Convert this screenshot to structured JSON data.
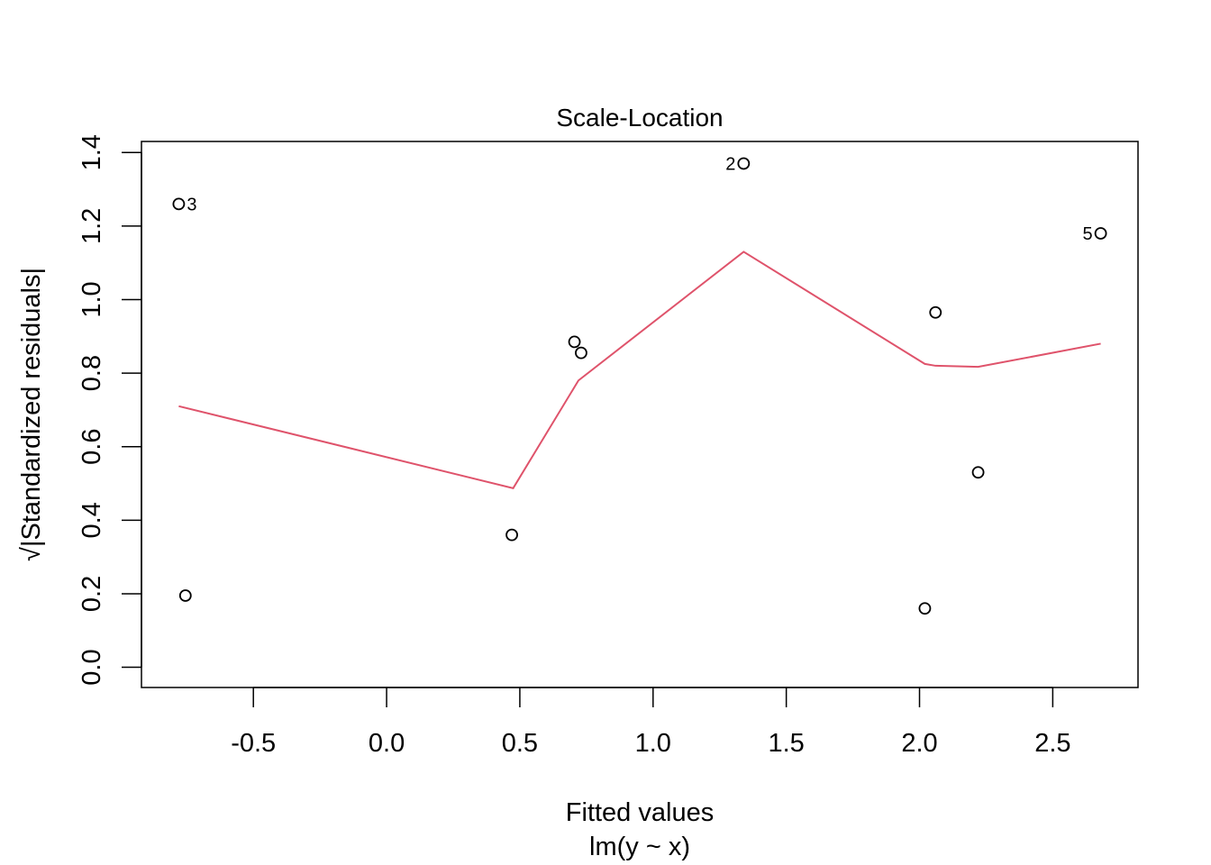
{
  "chart_data": {
    "type": "scatter",
    "title": "Scale-Location",
    "xlabel": "Fitted values",
    "xsublabel": "lm(y ~ x)",
    "ylabel_radical": "√",
    "ylabel": "|Standardized residuals|",
    "xlim": [
      -0.92,
      2.82
    ],
    "ylim": [
      -0.055,
      1.43
    ],
    "xticks": [
      -0.5,
      0.0,
      0.5,
      1.0,
      1.5,
      2.0,
      2.5
    ],
    "xtick_labels": [
      "-0.5",
      "0.0",
      "0.5",
      "1.0",
      "1.5",
      "2.0",
      "2.5"
    ],
    "yticks": [
      0.0,
      0.2,
      0.4,
      0.6,
      0.8,
      1.0,
      1.2,
      1.4
    ],
    "ytick_labels": [
      "0.0",
      "0.2",
      "0.4",
      "0.6",
      "0.8",
      "1.0",
      "1.2",
      "1.4"
    ],
    "points": [
      {
        "x": -0.78,
        "y": 1.26,
        "label": "3",
        "label_side": "right"
      },
      {
        "x": -0.755,
        "y": 0.195,
        "label": "",
        "label_side": ""
      },
      {
        "x": 0.47,
        "y": 0.36,
        "label": "",
        "label_side": ""
      },
      {
        "x": 0.705,
        "y": 0.885,
        "label": "",
        "label_side": ""
      },
      {
        "x": 0.73,
        "y": 0.855,
        "label": "",
        "label_side": ""
      },
      {
        "x": 1.34,
        "y": 1.37,
        "label": "2",
        "label_side": "left"
      },
      {
        "x": 2.02,
        "y": 0.16,
        "label": "",
        "label_side": ""
      },
      {
        "x": 2.06,
        "y": 0.965,
        "label": "",
        "label_side": ""
      },
      {
        "x": 2.22,
        "y": 0.53,
        "label": "",
        "label_side": ""
      },
      {
        "x": 2.68,
        "y": 1.18,
        "label": "5",
        "label_side": "left"
      }
    ],
    "smooth_line": {
      "color": "#DF536B",
      "x": [
        -0.78,
        0.475,
        0.72,
        1.34,
        2.02,
        2.06,
        2.22,
        2.68
      ],
      "y": [
        0.71,
        0.487,
        0.78,
        1.13,
        0.825,
        0.82,
        0.817,
        0.88
      ]
    },
    "grid": false,
    "point_color": "#000000"
  }
}
